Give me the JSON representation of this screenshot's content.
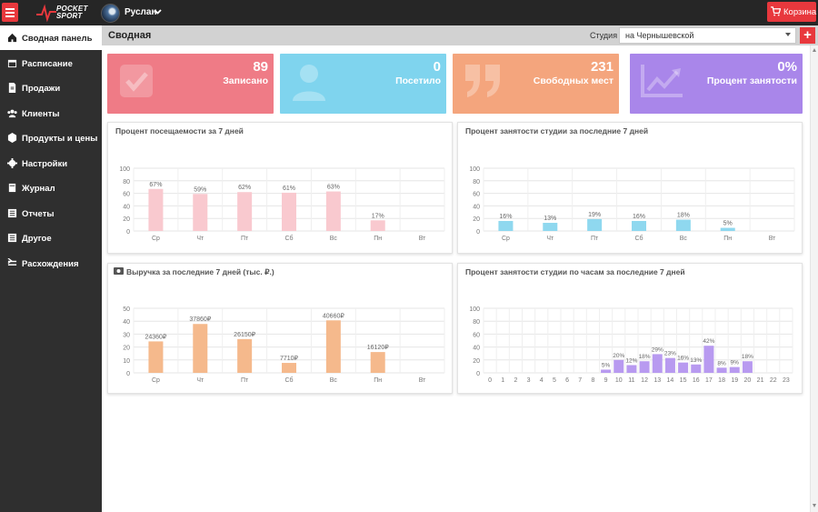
{
  "topbar": {
    "logo_line1": "POCKET",
    "logo_line2": "SPORT",
    "user_name": "Руслан",
    "cart_label": "Корзина"
  },
  "sidebar": {
    "items": [
      {
        "label": "Сводная панель",
        "icon": "home-icon",
        "active": true
      },
      {
        "label": "Расписание",
        "icon": "calendar-icon"
      },
      {
        "label": "Продажи",
        "icon": "document-icon"
      },
      {
        "label": "Клиенты",
        "icon": "users-icon"
      },
      {
        "label": "Продукты и цены",
        "icon": "cube-icon"
      },
      {
        "label": "Настройки",
        "icon": "gear-icon"
      },
      {
        "label": "Журнал",
        "icon": "book-icon"
      },
      {
        "label": "Отчеты",
        "icon": "list-icon"
      },
      {
        "label": "Другое",
        "icon": "list-icon"
      },
      {
        "label": "Расхождения",
        "icon": "sort-icon"
      }
    ]
  },
  "header": {
    "title": "Сводная",
    "studio_label": "Студия",
    "studio_value": "на Чернышевской",
    "add_label": "+"
  },
  "stats": [
    {
      "value": "89",
      "label": "Записано",
      "color": "#ef7b86",
      "icon": "check-icon"
    },
    {
      "value": "0",
      "label": "Посетило",
      "color": "#7fd4ee",
      "icon": "user-icon"
    },
    {
      "value": "231",
      "label": "Свободных мест",
      "color": "#f4a57d",
      "icon": "quote-icon"
    },
    {
      "value": "0%",
      "label": "Процент занятости",
      "color": "#a986ea",
      "icon": "trend-icon"
    }
  ],
  "panels": {
    "attendance": {
      "title": "Процент посещаемости за 7 дней"
    },
    "occupancy": {
      "title": "Процент занятости студии за последние 7 дней"
    },
    "revenue": {
      "title": "Выручка за последние 7 дней (тыс. ₽.)"
    },
    "hourly": {
      "title": "Процент занятости студии по часам за последние 7 дней"
    }
  },
  "chart_data": [
    {
      "type": "bar",
      "title": "Процент посещаемости за 7 дней",
      "categories": [
        "Ср",
        "Чт",
        "Пт",
        "Сб",
        "Вс",
        "Пн",
        "Вт"
      ],
      "values": [
        67,
        59,
        62,
        61,
        63,
        17,
        0
      ],
      "labels": [
        "67%",
        "59%",
        "62%",
        "61%",
        "63%",
        "17%",
        ""
      ],
      "ylim": [
        0,
        100
      ],
      "yticks": [
        0,
        20,
        40,
        60,
        80,
        100
      ],
      "color": "#f9c9cf",
      "grid": true
    },
    {
      "type": "bar",
      "title": "Процент занятости студии за последние 7 дней",
      "categories": [
        "Ср",
        "Чт",
        "Пт",
        "Сб",
        "Вс",
        "Пн",
        "Вт"
      ],
      "values": [
        16,
        13,
        19,
        16,
        18,
        5,
        0
      ],
      "labels": [
        "16%",
        "13%",
        "19%",
        "16%",
        "18%",
        "5%",
        ""
      ],
      "ylim": [
        0,
        100
      ],
      "yticks": [
        0,
        20,
        40,
        60,
        80,
        100
      ],
      "color": "#8fd8ef",
      "grid": true
    },
    {
      "type": "bar",
      "title": "Выручка за последние 7 дней (тыс. ₽.)",
      "categories": [
        "Ср",
        "Чт",
        "Пт",
        "Сб",
        "Вс",
        "Пн",
        "Вт"
      ],
      "values": [
        24.36,
        37.86,
        26.15,
        7.71,
        40.66,
        16.12,
        0
      ],
      "labels": [
        "24360₽",
        "37860₽",
        "26150₽",
        "7710₽",
        "40660₽",
        "16120₽",
        ""
      ],
      "ylim": [
        0,
        50
      ],
      "yticks": [
        0,
        10,
        20,
        30,
        40,
        50
      ],
      "color": "#f5b98c",
      "grid": true
    },
    {
      "type": "bar",
      "title": "Процент занятости студии по часам за последние 7 дней",
      "categories": [
        "0",
        "1",
        "2",
        "3",
        "4",
        "5",
        "6",
        "7",
        "8",
        "9",
        "10",
        "11",
        "12",
        "13",
        "14",
        "15",
        "16",
        "17",
        "18",
        "19",
        "20",
        "21",
        "22",
        "23"
      ],
      "values": [
        0,
        0,
        0,
        0,
        0,
        0,
        0,
        0,
        0,
        5,
        20,
        12,
        18,
        29,
        23,
        16,
        13,
        42,
        8,
        9,
        18,
        0,
        0,
        0
      ],
      "labels": [
        "",
        "",
        "",
        "",
        "",
        "",
        "",
        "",
        "",
        "5%",
        "20%",
        "12%",
        "18%",
        "29%",
        "23%",
        "16%",
        "13%",
        "42%",
        "8%",
        "9%",
        "18%",
        "",
        "",
        ""
      ],
      "ylim": [
        0,
        100
      ],
      "yticks": [
        0,
        20,
        40,
        60,
        80,
        100
      ],
      "color": "#b89af0",
      "grid": true
    }
  ]
}
